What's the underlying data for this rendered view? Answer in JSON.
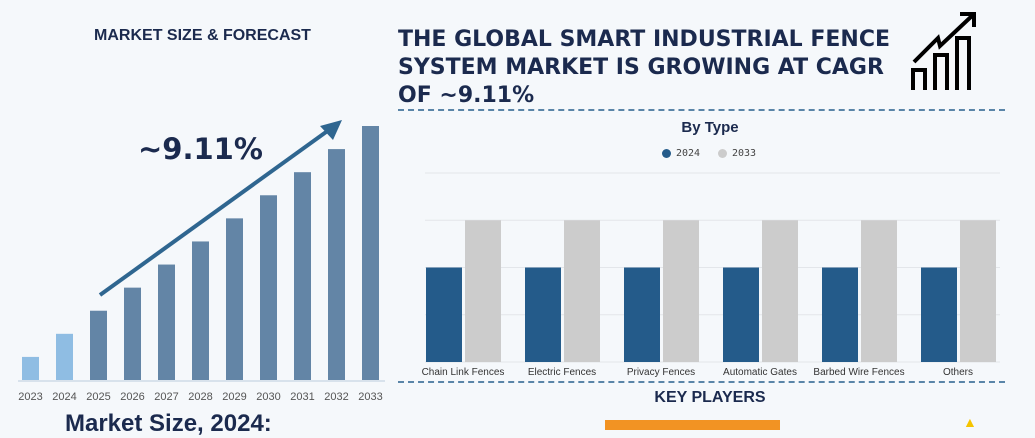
{
  "left_title": "MARKET SIZE & FORECAST",
  "cagr_label": "~9.11%",
  "headline": "THE GLOBAL SMART INDUSTRIAL FENCE SYSTEM MARKET IS GROWING AT CAGR OF ~9.11%",
  "market_size_label": "Market Size, 2024:",
  "key_players_title": "KEY PLAYERS",
  "icons": {
    "growth": "bar-chart-growth-arrow-icon"
  },
  "colors": {
    "navy": "#1b2a4e",
    "bar_forecast": "#6385a6",
    "bar_history": "#8fbde3",
    "series_2024": "#245b8a",
    "series_2033": "#cccccc",
    "orange": "#f29323"
  },
  "chart_data": [
    {
      "type": "bar",
      "title": "",
      "categories": [
        "2023",
        "2024",
        "2025",
        "2026",
        "2027",
        "2028",
        "2029",
        "2030",
        "2031",
        "2032",
        "2033"
      ],
      "values": [
        1,
        2,
        3,
        4,
        5,
        6,
        7,
        8,
        9,
        10,
        11
      ],
      "annotation": "~9.11%",
      "ylim": [
        0,
        11
      ]
    },
    {
      "type": "bar",
      "title": "By Type",
      "categories": [
        "Chain Link Fences",
        "Electric Fences",
        "Privacy Fences",
        "Automatic Gates",
        "Barbed Wire Fences",
        "Others"
      ],
      "series": [
        {
          "name": "2024",
          "values": [
            2,
            2,
            2,
            2,
            2,
            2
          ]
        },
        {
          "name": "2033",
          "values": [
            3,
            3,
            3,
            3,
            3,
            3
          ]
        }
      ],
      "ylim": [
        0,
        4
      ],
      "grid": true,
      "legend": "top"
    }
  ]
}
